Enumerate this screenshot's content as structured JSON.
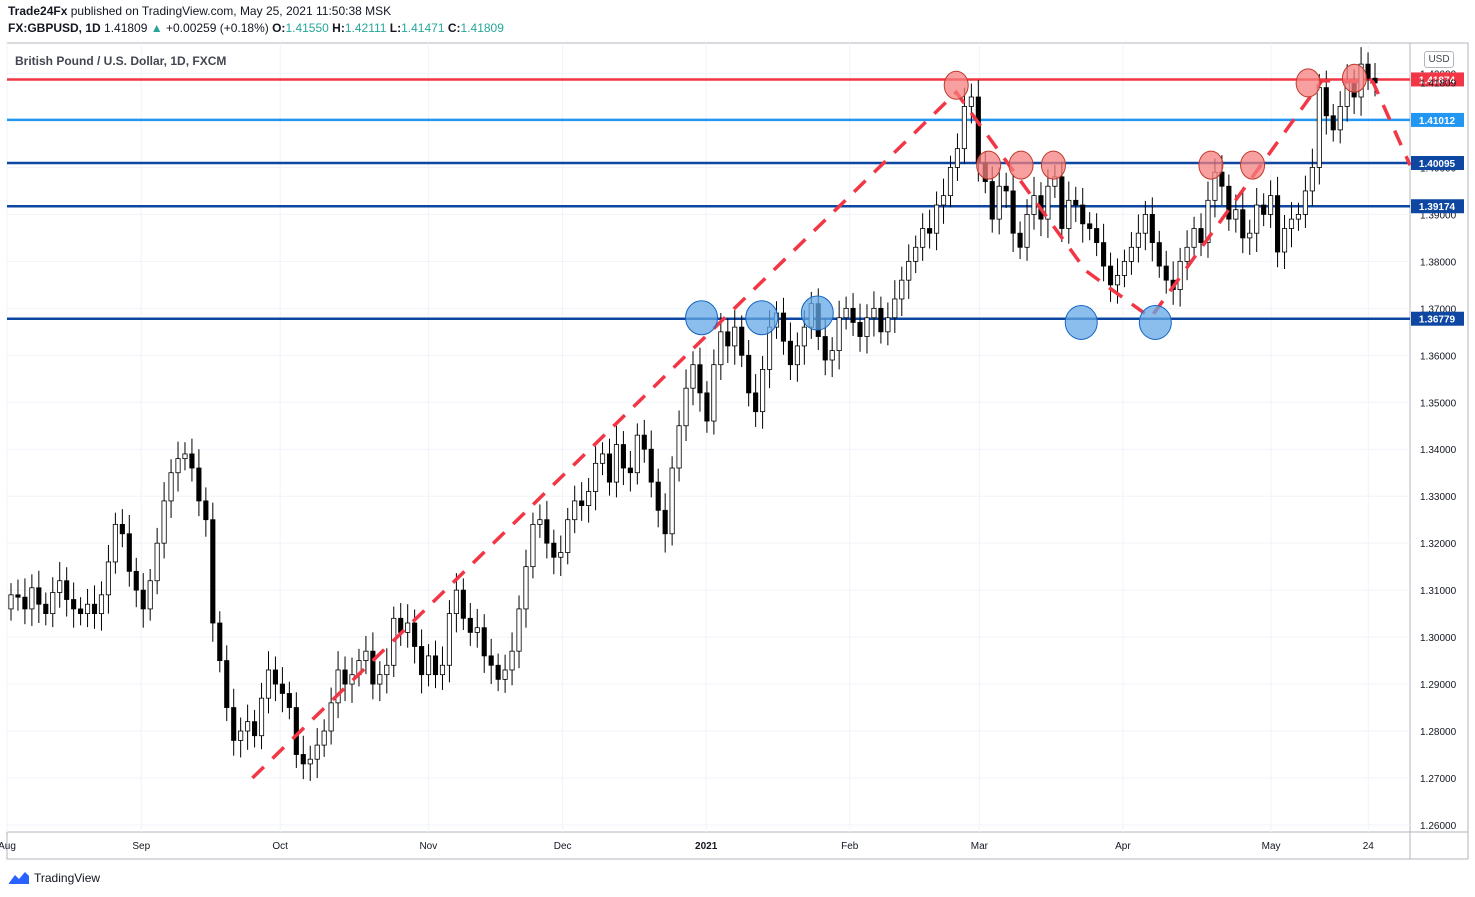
{
  "header": {
    "publisher": "Trade24Fx",
    "published_text": "published on TradingView.com, May 25, 2021 11:50:38 MSK",
    "symbol": "FX:GBPUSD, 1D",
    "last": "1.41809",
    "change_arrow": "▲",
    "change": "+0.00259 (+0.18%)",
    "o_label": "O:",
    "o_value": "1.41550",
    "h_label": "H:",
    "h_value": "1.42111",
    "l_label": "L:",
    "l_value": "1.41471",
    "c_label": "C:",
    "c_value": "1.41809"
  },
  "currency_badge": "USD",
  "footer": {
    "brand": "TradingView"
  },
  "colors": {
    "up_candle": "#ffffff",
    "down_candle": "#000000",
    "resistance_red": "#f23645",
    "light_blue_line": "#2196f3",
    "dark_blue_line": "#0d47a1",
    "dashed_trend": "#f23645",
    "red_highlight": "#f57f7f",
    "blue_highlight": "#64a8e6"
  },
  "chart_data": {
    "type": "candlestick",
    "title": "British Pound / U.S. Dollar, 1D, FXCM",
    "xlabel": "",
    "ylabel": "",
    "y_currency": "USD",
    "ylim": [
      1.2585,
      1.4265
    ],
    "yticks": [
      "1.26000",
      "1.27000",
      "1.28000",
      "1.29000",
      "1.30000",
      "1.31000",
      "1.32000",
      "1.33000",
      "1.34000",
      "1.35000",
      "1.36000",
      "1.37000",
      "1.38000",
      "1.39000",
      "1.40000",
      "1.41000",
      "1.42000"
    ],
    "xticks": [
      {
        "label": "Aug",
        "date": "2020-08-03"
      },
      {
        "label": "Sep",
        "date": "2020-09-01"
      },
      {
        "label": "Oct",
        "date": "2020-10-01"
      },
      {
        "label": "Nov",
        "date": "2020-11-02"
      },
      {
        "label": "Dec",
        "date": "2020-12-01"
      },
      {
        "label": "2021",
        "date": "2021-01-01"
      },
      {
        "label": "Feb",
        "date": "2021-02-01"
      },
      {
        "label": "Mar",
        "date": "2021-03-01"
      },
      {
        "label": "Apr",
        "date": "2021-04-01"
      },
      {
        "label": "May",
        "date": "2021-05-03"
      },
      {
        "label": "24",
        "date": "2021-05-24"
      }
    ],
    "xlim": [
      "2020-08-03",
      "2021-06-02"
    ],
    "grid": true,
    "last_price": 1.41809,
    "horizontal_levels": [
      {
        "price": 1.41874,
        "label": "1.41874",
        "color": "#f23645"
      },
      {
        "price": 1.41012,
        "label": "1.41012",
        "color": "#2196f3"
      },
      {
        "price": 1.40095,
        "label": "1.40095",
        "color": "#0d47a1"
      },
      {
        "price": 1.39174,
        "label": "1.39174",
        "color": "#0d47a1"
      },
      {
        "price": 1.36779,
        "label": "1.36779",
        "color": "#0d47a1"
      }
    ],
    "dashed_trend_path": [
      {
        "date": "2020-09-25",
        "price": 1.27
      },
      {
        "date": "2021-02-24",
        "price": 1.416
      },
      {
        "date": "2021-03-24",
        "price": 1.378
      },
      {
        "date": "2021-04-07",
        "price": 1.368
      },
      {
        "date": "2021-05-14",
        "price": 1.4185
      },
      {
        "date": "2021-05-25",
        "price": 1.4182
      },
      {
        "date": "2021-06-02",
        "price": 1.4005
      }
    ],
    "highlights": [
      {
        "date": "2021-02-24",
        "price": 1.4175,
        "color": "red"
      },
      {
        "date": "2021-03-03",
        "price": 1.4005,
        "color": "red"
      },
      {
        "date": "2021-03-10",
        "price": 1.4005,
        "color": "red"
      },
      {
        "date": "2021-03-17",
        "price": 1.4005,
        "color": "red"
      },
      {
        "date": "2021-04-20",
        "price": 1.4005,
        "color": "red"
      },
      {
        "date": "2021-04-29",
        "price": 1.4005,
        "color": "red"
      },
      {
        "date": "2021-05-11",
        "price": 1.418,
        "color": "red"
      },
      {
        "date": "2021-05-21",
        "price": 1.419,
        "color": "red"
      },
      {
        "date": "2020-12-31",
        "price": 1.368,
        "color": "blue"
      },
      {
        "date": "2021-01-13",
        "price": 1.368,
        "color": "blue"
      },
      {
        "date": "2021-01-25",
        "price": 1.369,
        "color": "blue"
      },
      {
        "date": "2021-03-23",
        "price": 1.367,
        "color": "blue"
      },
      {
        "date": "2021-04-08",
        "price": 1.367,
        "color": "blue"
      }
    ],
    "closes": [
      1.309,
      1.3085,
      1.306,
      1.3105,
      1.307,
      1.305,
      1.3095,
      1.312,
      1.308,
      1.306,
      1.305,
      1.307,
      1.305,
      1.309,
      1.316,
      1.324,
      1.322,
      1.314,
      1.31,
      1.306,
      1.312,
      1.32,
      1.329,
      1.335,
      1.338,
      1.339,
      1.336,
      1.329,
      1.325,
      1.303,
      1.295,
      1.285,
      1.278,
      1.28,
      1.282,
      1.279,
      1.287,
      1.293,
      1.29,
      1.288,
      1.285,
      1.275,
      1.273,
      1.274,
      1.277,
      1.28,
      1.286,
      1.293,
      1.29,
      1.292,
      1.295,
      1.297,
      1.29,
      1.292,
      1.294,
      1.304,
      1.301,
      1.303,
      1.298,
      1.292,
      1.296,
      1.292,
      1.294,
      1.305,
      1.31,
      1.304,
      1.301,
      1.302,
      1.296,
      1.294,
      1.291,
      1.293,
      1.297,
      1.306,
      1.315,
      1.324,
      1.325,
      1.32,
      1.317,
      1.318,
      1.325,
      1.329,
      1.328,
      1.331,
      1.337,
      1.339,
      1.333,
      1.341,
      1.336,
      1.335,
      1.343,
      1.34,
      1.333,
      1.327,
      1.322,
      1.336,
      1.345,
      1.353,
      1.358,
      1.352,
      1.346,
      1.358,
      1.365,
      1.362,
      1.366,
      1.36,
      1.352,
      1.348,
      1.357,
      1.366,
      1.369,
      1.363,
      1.358,
      1.362,
      1.366,
      1.371,
      1.364,
      1.359,
      1.361,
      1.368,
      1.37,
      1.367,
      1.364,
      1.368,
      1.37,
      1.365,
      1.368,
      1.372,
      1.376,
      1.38,
      1.383,
      1.387,
      1.386,
      1.392,
      1.394,
      1.4,
      1.404,
      1.413,
      1.415,
      1.401,
      1.397,
      1.389,
      1.396,
      1.395,
      1.386,
      1.383,
      1.39,
      1.394,
      1.389,
      1.396,
      1.398,
      1.387,
      1.393,
      1.392,
      1.388,
      1.387,
      1.384,
      1.379,
      1.375,
      1.377,
      1.38,
      1.383,
      1.386,
      1.39,
      1.384,
      1.379,
      1.376,
      1.374,
      1.38,
      1.383,
      1.387,
      1.384,
      1.393,
      1.399,
      1.396,
      1.389,
      1.391,
      1.385,
      1.386,
      1.392,
      1.39,
      1.394,
      1.382,
      1.387,
      1.389,
      1.39,
      1.395,
      1.4,
      1.417,
      1.411,
      1.408,
      1.413,
      1.418,
      1.415,
      1.422,
      1.419,
      1.418
    ]
  }
}
